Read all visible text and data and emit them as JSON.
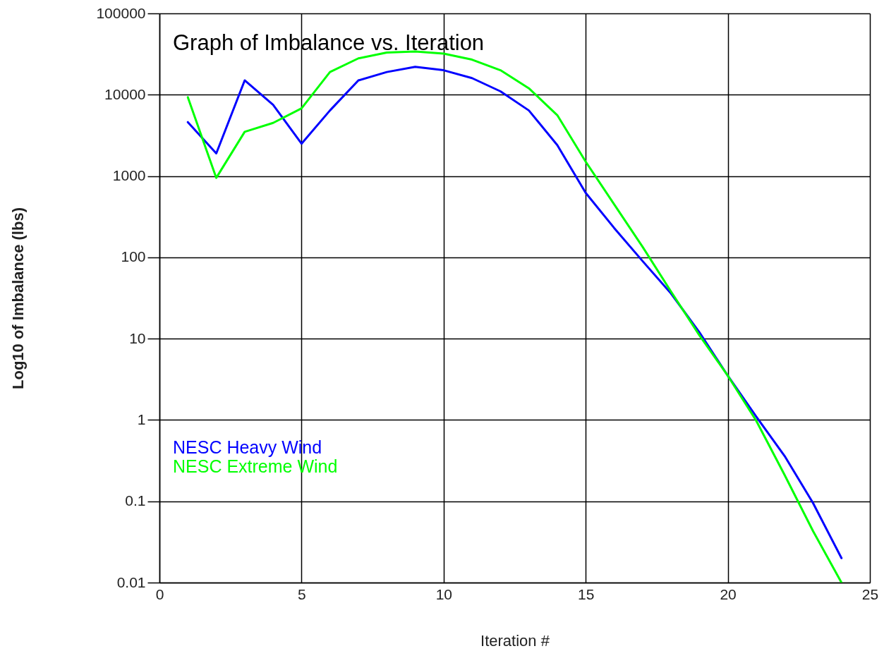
{
  "chart_data": {
    "type": "line",
    "title": "Graph of Imbalance vs. Iteration",
    "xlabel": "Iteration #",
    "ylabel": "Log10 of Imbalance (lbs)",
    "x": [
      1,
      2,
      3,
      4,
      5,
      6,
      7,
      8,
      9,
      10,
      11,
      12,
      13,
      14,
      15,
      16,
      17,
      18,
      19,
      20,
      21,
      22,
      23,
      24
    ],
    "series": [
      {
        "name": "NESC Heavy Wind",
        "color": "#0000ff",
        "values": [
          4600,
          1900,
          15000,
          7500,
          2500,
          6400,
          15000,
          19000,
          22000,
          20000,
          16000,
          11000,
          6400,
          2400,
          620,
          230,
          90,
          36,
          12,
          3.5,
          1.1,
          0.36,
          0.095,
          0.02
        ]
      },
      {
        "name": "NESC Extreme Wind",
        "color": "#00ff00",
        "values": [
          9300,
          950,
          3500,
          4500,
          6800,
          19000,
          28000,
          33000,
          34000,
          32000,
          27000,
          20000,
          12000,
          5600,
          1500,
          450,
          135,
          38,
          11,
          3.5,
          0.98,
          0.21,
          0.043,
          0.01
        ]
      }
    ],
    "xlim": [
      0,
      25
    ],
    "xticks": [
      0,
      5,
      10,
      15,
      20,
      25
    ],
    "ylim": [
      0.01,
      100000
    ],
    "yticks": [
      0.01,
      0.1,
      1,
      10,
      100,
      1000,
      10000,
      100000
    ],
    "log": "y",
    "grid": true,
    "legend": "bottom left",
    "line_style": "solid"
  }
}
